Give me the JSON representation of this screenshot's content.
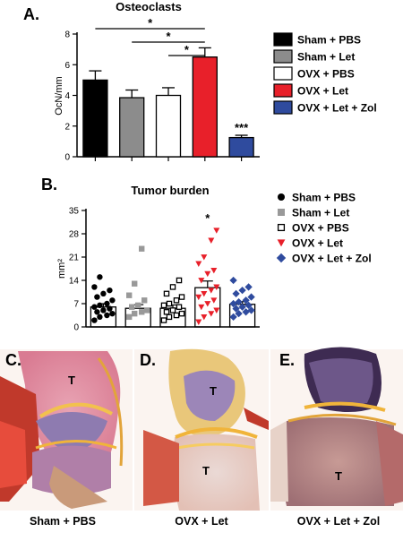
{
  "panels": {
    "a": {
      "letter": "A."
    },
    "b": {
      "letter": "B."
    }
  },
  "chart_data": [
    {
      "type": "bar",
      "title": "Osteoclasts",
      "ylabel": "OcN/mm",
      "xlabel": "",
      "ylim": [
        0,
        8
      ],
      "yticks": [
        "0",
        "2",
        "4",
        "6",
        "8"
      ],
      "categories": [
        "Sham + PBS",
        "Sham + Let",
        "OVX + PBS",
        "OVX + Let",
        "OVX + Let + Zol"
      ],
      "values": [
        5.0,
        3.85,
        4.0,
        6.5,
        1.25
      ],
      "errors": [
        0.6,
        0.5,
        0.5,
        0.6,
        0.15
      ],
      "colors": [
        "#000000",
        "#8c8c8c",
        "#ffffff",
        "#e8202a",
        "#2f4b9e"
      ],
      "annotations": {
        "bar_star": "***",
        "brackets": [
          {
            "from": 0,
            "to": 3,
            "label": "*"
          },
          {
            "from": 1,
            "to": 3,
            "label": "*"
          },
          {
            "from": 2,
            "to": 3,
            "label": "*"
          }
        ]
      },
      "legend": [
        {
          "label": "Sham + PBS",
          "color": "#000000"
        },
        {
          "label": "Sham + Let",
          "color": "#8c8c8c"
        },
        {
          "label": "OVX + PBS",
          "color": "#ffffff"
        },
        {
          "label": "OVX + Let",
          "color": "#e8202a"
        },
        {
          "label": "OVX + Let + Zol",
          "color": "#2f4b9e"
        }
      ],
      "grid": false
    },
    {
      "type": "scatter",
      "title": "Tumor burden",
      "ylabel": "mm²",
      "xlabel": "",
      "ylim": [
        0,
        35
      ],
      "yticks": [
        "0",
        "7",
        "14",
        "21",
        "28",
        "35"
      ],
      "categories": [
        "Sham + PBS",
        "Sham + Let",
        "OVX + PBS",
        "OVX + Let",
        "OVX + Let + Zol"
      ],
      "means": [
        6.0,
        5.6,
        5.6,
        11.8,
        6.8
      ],
      "sems": [
        1.0,
        1.1,
        1.0,
        2.0,
        0.8
      ],
      "bar_star": "*",
      "markers": [
        {
          "name": "Sham + PBS",
          "shape": "circle",
          "color": "#000000"
        },
        {
          "name": "Sham + Let",
          "shape": "square",
          "color": "#999999"
        },
        {
          "name": "OVX + PBS",
          "shape": "open-square",
          "color": "#000000"
        },
        {
          "name": "OVX + Let",
          "shape": "triangle-down",
          "color": "#e8202a"
        },
        {
          "name": "OVX + Let + Zol",
          "shape": "diamond",
          "color": "#2f4b9e"
        }
      ],
      "points": [
        [
          2,
          3,
          3.5,
          4,
          4.5,
          5,
          5.5,
          6,
          6.5,
          7,
          8,
          9,
          10,
          11,
          12,
          15
        ],
        [
          3,
          4,
          4.5,
          5,
          6,
          6.5,
          8,
          9.5,
          13,
          23.5
        ],
        [
          2,
          3,
          3.5,
          4,
          4.5,
          5,
          6,
          6.5,
          7,
          8,
          9,
          10,
          12,
          14
        ],
        [
          1.5,
          3,
          4,
          5,
          6,
          7,
          8,
          9,
          10,
          11,
          12,
          14,
          16,
          17,
          19,
          21,
          26,
          29
        ],
        [
          3,
          4,
          4.5,
          5,
          5.5,
          6,
          6.5,
          7,
          7.5,
          8,
          9,
          10,
          11,
          12,
          14
        ]
      ],
      "legend": [
        {
          "label": "Sham + PBS",
          "shape": "circle",
          "color": "#000000"
        },
        {
          "label": "Sham + Let",
          "shape": "square",
          "color": "#999999"
        },
        {
          "label": "OVX + PBS",
          "shape": "open-square",
          "color": "#000000"
        },
        {
          "label": "OVX + Let",
          "shape": "triangle-down",
          "color": "#e8202a"
        },
        {
          "label": "OVX + Let + Zol",
          "shape": "diamond",
          "color": "#2f4b9e"
        }
      ],
      "grid": false
    }
  ],
  "histology": [
    {
      "letter": "C.",
      "caption": "Sham + PBS",
      "labels": [
        "T"
      ]
    },
    {
      "letter": "D.",
      "caption": "OVX + Let",
      "labels": [
        "T",
        "T"
      ]
    },
    {
      "letter": "E.",
      "caption": "OVX + Let + Zol",
      "labels": [
        "T"
      ]
    }
  ]
}
